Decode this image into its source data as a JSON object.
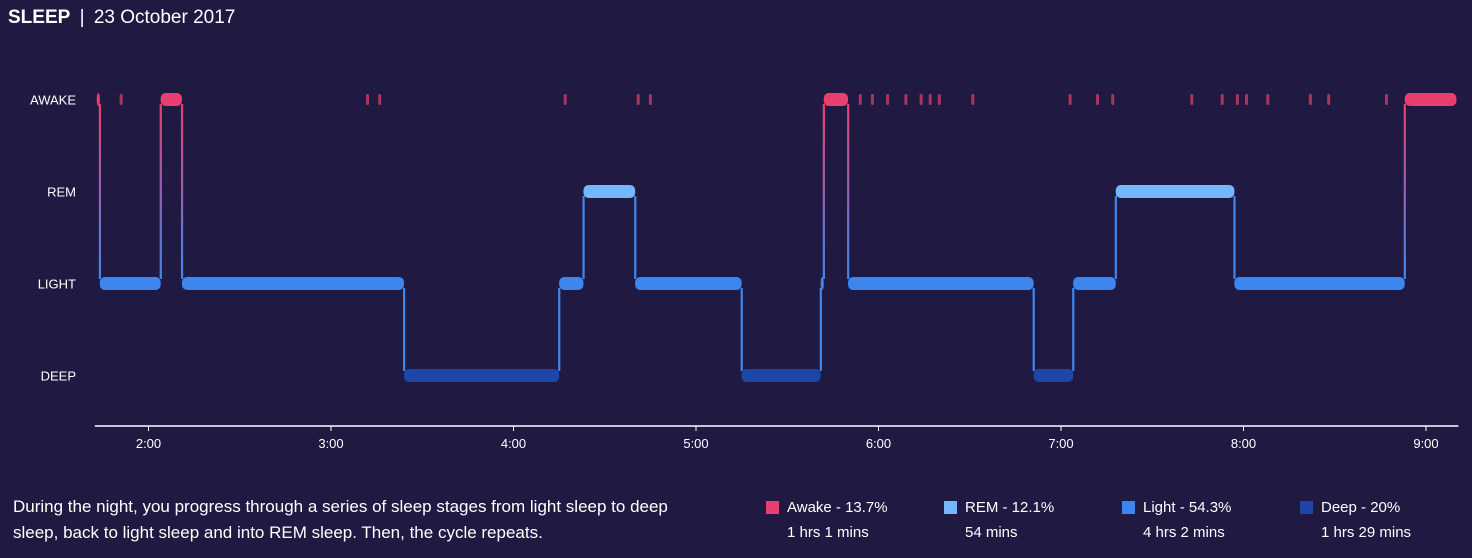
{
  "header": {
    "title": "SLEEP",
    "separator": "|",
    "date": "23 October 2017"
  },
  "colors": {
    "background": "#201a43",
    "awake": "#e83f6e",
    "rem": "#74b7ff",
    "light": "#3d86ef",
    "deep": "#1c46a8",
    "axis": "#ffffff"
  },
  "chart_data": {
    "type": "step",
    "title": "",
    "xlabel": "",
    "ylabel": "",
    "stage_labels": [
      "AWAKE",
      "REM",
      "LIGHT",
      "DEEP"
    ],
    "x_ticks": [
      "2:00",
      "3:00",
      "4:00",
      "5:00",
      "6:00",
      "7:00",
      "8:00",
      "9:00"
    ],
    "x_range": [
      "1:43",
      "9:10"
    ],
    "segments": [
      {
        "stage": "AWAKE",
        "start": "1:43",
        "end": "1:44"
      },
      {
        "stage": "LIGHT",
        "start": "1:44",
        "end": "2:04"
      },
      {
        "stage": "AWAKE",
        "start": "2:04",
        "end": "2:11"
      },
      {
        "stage": "LIGHT",
        "start": "2:11",
        "end": "3:24"
      },
      {
        "stage": "DEEP",
        "start": "3:24",
        "end": "4:15"
      },
      {
        "stage": "LIGHT",
        "start": "4:15",
        "end": "4:23"
      },
      {
        "stage": "REM",
        "start": "4:23",
        "end": "4:40"
      },
      {
        "stage": "LIGHT",
        "start": "4:40",
        "end": "5:15"
      },
      {
        "stage": "DEEP",
        "start": "5:15",
        "end": "5:41"
      },
      {
        "stage": "LIGHT",
        "start": "5:41",
        "end": "5:42"
      },
      {
        "stage": "AWAKE",
        "start": "5:42",
        "end": "5:50"
      },
      {
        "stage": "LIGHT",
        "start": "5:50",
        "end": "6:51"
      },
      {
        "stage": "DEEP",
        "start": "6:51",
        "end": "7:04"
      },
      {
        "stage": "LIGHT",
        "start": "7:04",
        "end": "7:18"
      },
      {
        "stage": "REM",
        "start": "7:18",
        "end": "7:57"
      },
      {
        "stage": "LIGHT",
        "start": "7:57",
        "end": "8:53"
      },
      {
        "stage": "AWAKE",
        "start": "8:53",
        "end": "9:10"
      }
    ],
    "brief_awakenings": [
      "1:51",
      "3:12",
      "3:16",
      "4:17",
      "4:41",
      "4:45",
      "5:54",
      "5:58",
      "6:03",
      "6:09",
      "6:14",
      "6:17",
      "6:20",
      "6:31",
      "7:03",
      "7:12",
      "7:17",
      "7:43",
      "7:53",
      "7:58",
      "8:01",
      "8:08",
      "8:22",
      "8:28",
      "8:47"
    ]
  },
  "description": "During the night, you progress through a series of sleep stages from light sleep to deep sleep, back to light sleep and into REM sleep. Then, the cycle repeats.",
  "legend": [
    {
      "key": "awake",
      "label": "Awake - 13.7%",
      "duration": "1 hrs 1 mins",
      "color": "#e83f6e"
    },
    {
      "key": "rem",
      "label": "REM - 12.1%",
      "duration": "54 mins",
      "color": "#74b7ff"
    },
    {
      "key": "light",
      "label": "Light - 54.3%",
      "duration": "4 hrs 2 mins",
      "color": "#3d86ef"
    },
    {
      "key": "deep",
      "label": "Deep - 20%",
      "duration": "1 hrs 29 mins",
      "color": "#1c46a8"
    }
  ]
}
